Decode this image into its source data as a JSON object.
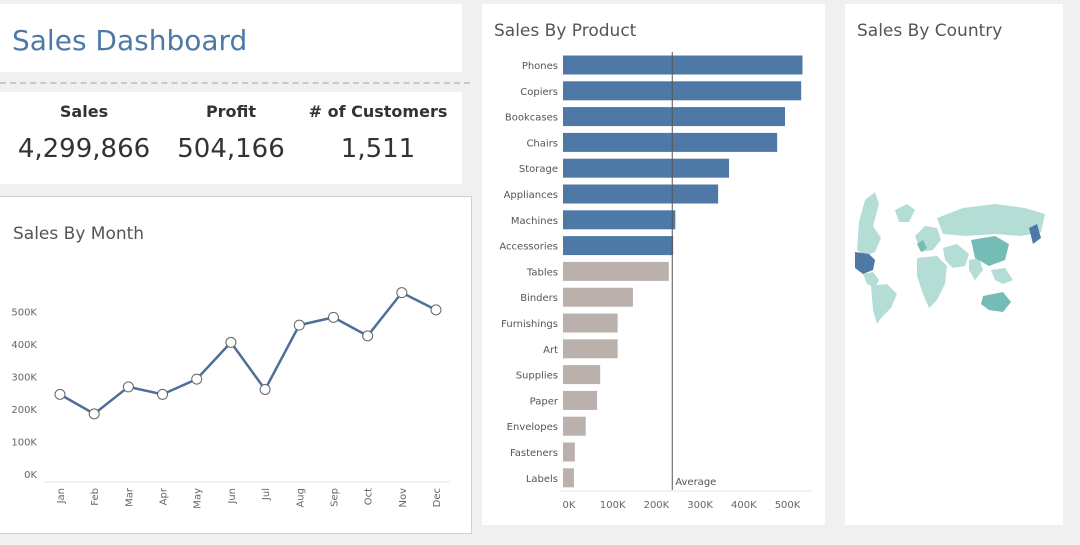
{
  "dashboard_title": "Sales Dashboard",
  "kpis": [
    {
      "label": "Sales",
      "value": "4,299,866"
    },
    {
      "label": "Profit",
      "value": "504,166"
    },
    {
      "label": "# of Customers",
      "value": "1,511"
    }
  ],
  "colors": {
    "title": "#4e79a7",
    "above_avg": "#4e79a7",
    "below_avg": "#bab0ac",
    "line": "#4e6f96",
    "map_light": "#b4ddd6",
    "map_mid": "#76bcb6",
    "map_dark": "#4e79a7"
  },
  "map_panel": {
    "title": "Sales By Country"
  },
  "chart_data": [
    {
      "type": "line",
      "title": "Sales By Month",
      "categories": [
        "Jan",
        "Feb",
        "Mar",
        "Apr",
        "May",
        "Jun",
        "Jul",
        "Aug",
        "Sep",
        "Oct",
        "Nov",
        "Dec"
      ],
      "values": [
        245000,
        185000,
        268000,
        245000,
        292000,
        405000,
        260000,
        458000,
        482000,
        425000,
        558000,
        505000
      ],
      "y_ticks": [
        0,
        100000,
        200000,
        300000,
        400000,
        500000
      ],
      "y_tick_labels": [
        "0K",
        "100K",
        "200K",
        "300K",
        "400K",
        "500K"
      ],
      "ylim": [
        0,
        600000
      ],
      "grid": false
    },
    {
      "type": "bar",
      "orientation": "horizontal",
      "title": "Sales By Product",
      "categories": [
        "Phones",
        "Copiers",
        "Bookcases",
        "Chairs",
        "Storage",
        "Appliances",
        "Machines",
        "Accessories",
        "Tables",
        "Binders",
        "Furnishings",
        "Art",
        "Supplies",
        "Paper",
        "Envelopes",
        "Fasteners",
        "Labels"
      ],
      "values": [
        548000,
        545000,
        508000,
        490000,
        380000,
        355000,
        257000,
        252000,
        242000,
        160000,
        125000,
        125000,
        85000,
        78000,
        52000,
        27000,
        25000
      ],
      "x_ticks": [
        0,
        100000,
        200000,
        300000,
        400000,
        500000
      ],
      "x_tick_labels": [
        "0K",
        "100K",
        "200K",
        "300K",
        "400K",
        "500K"
      ],
      "xlim": [
        0,
        560000
      ],
      "reference_line": {
        "label": "Average",
        "value": 250000
      },
      "grid": false
    }
  ]
}
